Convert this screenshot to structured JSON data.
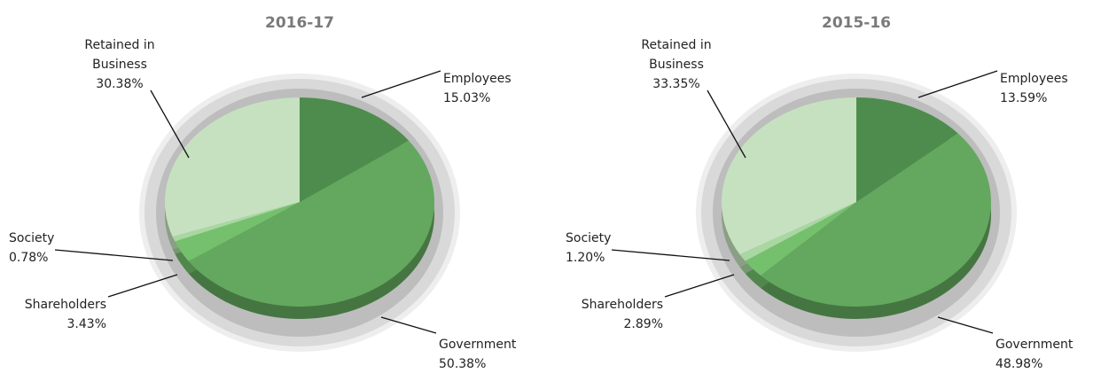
{
  "chart_data": [
    {
      "type": "pie",
      "title": "2016-17",
      "categories": [
        "Employees",
        "Government",
        "Shareholders",
        "Society",
        "Retained in Business"
      ],
      "values": [
        15.03,
        50.38,
        3.43,
        0.78,
        30.38
      ],
      "value_labels": [
        "15.03%",
        "50.38%",
        "3.43%",
        "0.78%",
        "30.38%"
      ],
      "colors": [
        "#4e8c4e",
        "#63a85e",
        "#74c06d",
        "#a9d7a1",
        "#c6e1c0"
      ]
    },
    {
      "type": "pie",
      "title": "2015-16",
      "categories": [
        "Employees",
        "Government",
        "Shareholders",
        "Society",
        "Retained in Business"
      ],
      "values": [
        13.59,
        48.98,
        2.89,
        1.2,
        33.35
      ],
      "value_labels": [
        "13.59%",
        "48.98%",
        "2.89%",
        "1.20%",
        "33.35%"
      ],
      "colors": [
        "#4e8c4e",
        "#63a85e",
        "#74c06d",
        "#a9d7a1",
        "#c6e1c0"
      ]
    }
  ]
}
